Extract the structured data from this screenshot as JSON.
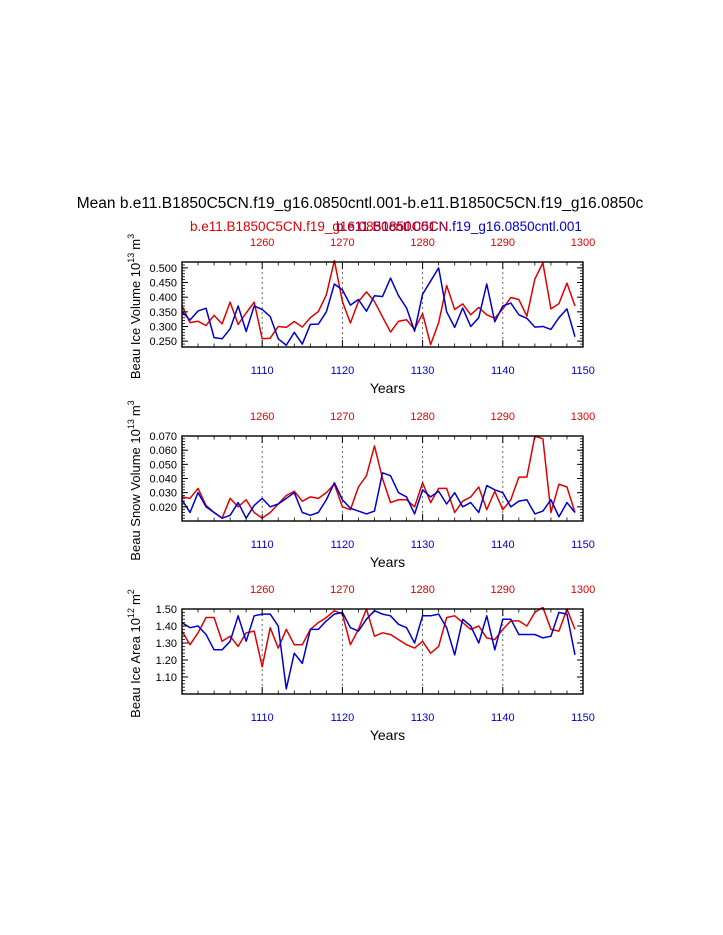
{
  "figure_title": "Mean b.e11.B1850C5CN.f19_g16.0850cntl.001-b.e11.B1850C5CN.f19_g16.0850c",
  "legend": {
    "red_case": "b.e11.B1850C5CN.f19_g16.0850cntl.001",
    "red_case_overlap": "b.e11.B1850C5CN",
    "blue_case": "b.e11.B1850C5CN.f19_g16.0850cntl.001",
    "red_color": "#e00000",
    "blue_color": "#0000cc"
  },
  "chart_data": [
    {
      "type": "line",
      "name": "ice-volume",
      "ylabel_main": "Beau Ice Volume 10",
      "ylabel_exp": "13",
      "ylabel_unit": "m",
      "ylabel_unit_exp": "3",
      "xlabel": "Years",
      "ylim": [
        0.23,
        0.52
      ],
      "yticks": [
        "0.250",
        "0.300",
        "0.350",
        "0.400",
        "0.450",
        "0.500"
      ],
      "ytick_values": [
        0.25,
        0.3,
        0.35,
        0.4,
        0.45,
        0.5
      ],
      "x_bottom": {
        "range": [
          1100,
          1150
        ],
        "ticks": [
          "1110",
          "1120",
          "1130",
          "1140",
          "1150"
        ],
        "tick_values": [
          1110,
          1120,
          1130,
          1140,
          1150
        ]
      },
      "x_top": {
        "range": [
          1250,
          1300
        ],
        "ticks": [
          "1260",
          "1270",
          "1280",
          "1290",
          "1300"
        ],
        "tick_values": [
          1260,
          1270,
          1280,
          1290,
          1300
        ]
      },
      "series": [
        {
          "name": "red",
          "color": "#e00000",
          "axis": "top",
          "start": 1250,
          "values": [
            0.37,
            0.313,
            0.318,
            0.303,
            0.338,
            0.309,
            0.383,
            0.307,
            0.346,
            0.383,
            0.258,
            0.26,
            0.3,
            0.297,
            0.317,
            0.298,
            0.33,
            0.351,
            0.408,
            0.525,
            0.385,
            0.312,
            0.385,
            0.418,
            0.385,
            0.333,
            0.281,
            0.318,
            0.323,
            0.29,
            0.344,
            0.238,
            0.313,
            0.44,
            0.358,
            0.377,
            0.34,
            0.365,
            0.34,
            0.328,
            0.36,
            0.399,
            0.392,
            0.335,
            0.462,
            0.517,
            0.36,
            0.378,
            0.448,
            0.37
          ]
        },
        {
          "name": "blue",
          "color": "#0000cc",
          "axis": "bottom",
          "start": 1100,
          "values": [
            0.35,
            0.322,
            0.353,
            0.362,
            0.262,
            0.258,
            0.292,
            0.37,
            0.283,
            0.37,
            0.358,
            0.334,
            0.258,
            0.236,
            0.28,
            0.24,
            0.307,
            0.308,
            0.35,
            0.445,
            0.425,
            0.373,
            0.392,
            0.352,
            0.405,
            0.402,
            0.465,
            0.405,
            0.363,
            0.284,
            0.41,
            0.455,
            0.5,
            0.35,
            0.297,
            0.363,
            0.3,
            0.33,
            0.445,
            0.316,
            0.37,
            0.38,
            0.34,
            0.328,
            0.298,
            0.3,
            0.29,
            0.33,
            0.36,
            0.265
          ]
        }
      ]
    },
    {
      "type": "line",
      "name": "snow-volume",
      "ylabel_main": "Beau Snow Volume 10",
      "ylabel_exp": "13",
      "ylabel_unit": "m",
      "ylabel_unit_exp": "3",
      "xlabel": "Years",
      "ylim": [
        0.01,
        0.07
      ],
      "yticks": [
        "0.020",
        "0.030",
        "0.040",
        "0.050",
        "0.060",
        "0.070"
      ],
      "ytick_values": [
        0.02,
        0.03,
        0.04,
        0.05,
        0.06,
        0.07
      ],
      "x_bottom": {
        "range": [
          1100,
          1150
        ],
        "ticks": [
          "1110",
          "1120",
          "1130",
          "1140",
          "1150"
        ],
        "tick_values": [
          1110,
          1120,
          1130,
          1140,
          1150
        ]
      },
      "x_top": {
        "range": [
          1250,
          1300
        ],
        "ticks": [
          "1260",
          "1270",
          "1280",
          "1290",
          "1300"
        ],
        "tick_values": [
          1260,
          1270,
          1280,
          1290,
          1300
        ]
      },
      "series": [
        {
          "name": "red",
          "color": "#e00000",
          "axis": "top",
          "start": 1250,
          "values": [
            0.027,
            0.026,
            0.033,
            0.021,
            0.016,
            0.012,
            0.026,
            0.02,
            0.025,
            0.016,
            0.012,
            0.016,
            0.022,
            0.028,
            0.031,
            0.024,
            0.027,
            0.026,
            0.03,
            0.036,
            0.02,
            0.018,
            0.034,
            0.042,
            0.063,
            0.04,
            0.023,
            0.025,
            0.025,
            0.02,
            0.037,
            0.023,
            0.033,
            0.033,
            0.016,
            0.024,
            0.027,
            0.034,
            0.018,
            0.031,
            0.018,
            0.025,
            0.041,
            0.041,
            0.07,
            0.068,
            0.016,
            0.036,
            0.034,
            0.016
          ]
        },
        {
          "name": "blue",
          "color": "#0000cc",
          "axis": "bottom",
          "start": 1100,
          "values": [
            0.025,
            0.016,
            0.03,
            0.02,
            0.016,
            0.012,
            0.014,
            0.023,
            0.012,
            0.021,
            0.026,
            0.02,
            0.022,
            0.026,
            0.03,
            0.016,
            0.014,
            0.016,
            0.025,
            0.037,
            0.025,
            0.019,
            0.017,
            0.015,
            0.017,
            0.044,
            0.042,
            0.03,
            0.027,
            0.015,
            0.032,
            0.027,
            0.031,
            0.022,
            0.03,
            0.02,
            0.023,
            0.016,
            0.035,
            0.032,
            0.03,
            0.02,
            0.024,
            0.025,
            0.015,
            0.017,
            0.025,
            0.013,
            0.023,
            0.016
          ]
        }
      ]
    },
    {
      "type": "line",
      "name": "ice-area",
      "ylabel_main": "Beau Ice Area 10",
      "ylabel_exp": "12",
      "ylabel_unit": "m",
      "ylabel_unit_exp": "2",
      "xlabel": "Years",
      "ylim": [
        1.0,
        1.5
      ],
      "yticks": [
        "1.10",
        "1.20",
        "1.30",
        "1.40",
        "1.50"
      ],
      "ytick_values": [
        1.1,
        1.2,
        1.3,
        1.4,
        1.5
      ],
      "x_bottom": {
        "range": [
          1100,
          1150
        ],
        "ticks": [
          "1110",
          "1120",
          "1130",
          "1140",
          "1150"
        ],
        "tick_values": [
          1110,
          1120,
          1130,
          1140,
          1150
        ]
      },
      "x_top": {
        "range": [
          1250,
          1300
        ],
        "ticks": [
          "1260",
          "1270",
          "1280",
          "1290",
          "1300"
        ],
        "tick_values": [
          1260,
          1270,
          1280,
          1290,
          1300
        ]
      },
      "series": [
        {
          "name": "red",
          "color": "#e00000",
          "axis": "top",
          "start": 1250,
          "values": [
            1.37,
            1.29,
            1.36,
            1.45,
            1.45,
            1.31,
            1.34,
            1.28,
            1.36,
            1.37,
            1.16,
            1.39,
            1.27,
            1.38,
            1.29,
            1.29,
            1.38,
            1.42,
            1.45,
            1.49,
            1.47,
            1.29,
            1.38,
            1.5,
            1.34,
            1.36,
            1.35,
            1.32,
            1.29,
            1.27,
            1.31,
            1.24,
            1.28,
            1.45,
            1.46,
            1.42,
            1.38,
            1.4,
            1.33,
            1.32,
            1.38,
            1.43,
            1.43,
            1.4,
            1.48,
            1.51,
            1.38,
            1.37,
            1.5,
            1.38
          ]
        },
        {
          "name": "blue",
          "color": "#0000cc",
          "axis": "bottom",
          "start": 1100,
          "values": [
            1.42,
            1.39,
            1.4,
            1.35,
            1.26,
            1.26,
            1.31,
            1.46,
            1.31,
            1.46,
            1.47,
            1.47,
            1.4,
            1.03,
            1.24,
            1.18,
            1.38,
            1.38,
            1.43,
            1.47,
            1.48,
            1.39,
            1.37,
            1.44,
            1.49,
            1.47,
            1.46,
            1.41,
            1.39,
            1.3,
            1.46,
            1.46,
            1.47,
            1.39,
            1.23,
            1.44,
            1.4,
            1.3,
            1.46,
            1.26,
            1.44,
            1.44,
            1.35,
            1.35,
            1.35,
            1.33,
            1.34,
            1.48,
            1.47,
            1.23
          ]
        }
      ]
    }
  ]
}
